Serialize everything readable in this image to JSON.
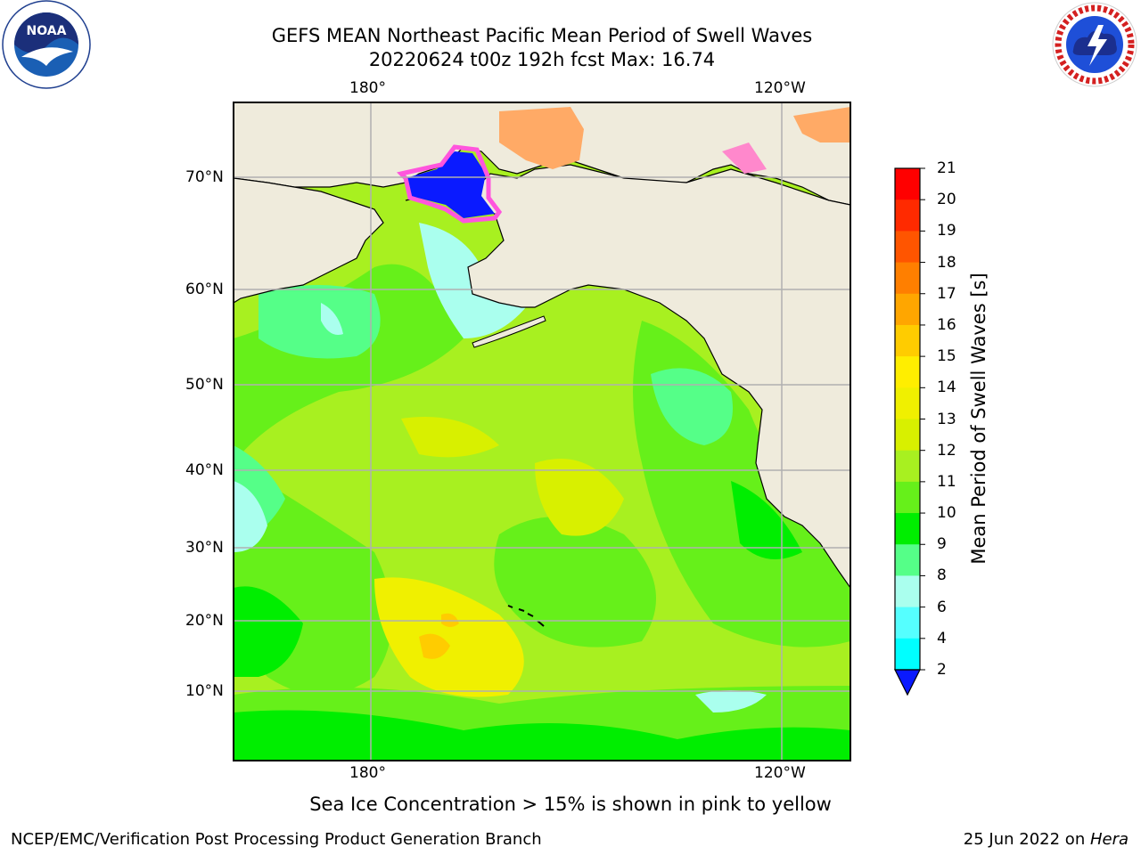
{
  "title": {
    "line1": "GEFS MEAN Northeast Pacific Mean Period of Swell Waves",
    "line2": "20220624 t00z 192h fcst   Max: 16.74"
  },
  "map": {
    "projection": "PlateCarree",
    "lon_range": [
      160,
      250
    ],
    "lat_range": [
      1,
      77
    ],
    "lon_ticks_top": [
      "180°",
      "120°W"
    ],
    "lon_ticks_bottom": [
      "180°",
      "120°W"
    ],
    "lat_ticks": [
      "70°N",
      "60°N",
      "50°N",
      "40°N",
      "30°N",
      "20°N",
      "10°N"
    ],
    "gridlines": true,
    "land_color": "#efebdc",
    "ocean_dominant_color": "#a8f020"
  },
  "colorbar": {
    "label": "Mean Period of Swell Waves [s]",
    "ticks": [
      "21",
      "20",
      "19",
      "18",
      "17",
      "16",
      "15",
      "14",
      "13",
      "12",
      "11",
      "10",
      "9",
      "8",
      "6",
      "4",
      "2"
    ],
    "colors": [
      "#ff0000",
      "#ff2a00",
      "#ff5500",
      "#ff7f00",
      "#ffa600",
      "#ffcc00",
      "#ffee00",
      "#f0f000",
      "#d8f000",
      "#a8f020",
      "#66f01a",
      "#00ee00",
      "#55ff88",
      "#aaffee",
      "#55ffff",
      "#00ffff",
      "#00ccff"
    ],
    "extend_color": "#0a1aff",
    "extend": "min"
  },
  "caption": "Sea Ice Concentration > 15% is shown in pink to yellow",
  "footer": {
    "left": "NCEP/EMC/Verification Post Processing Product Generation Branch",
    "right_date": "25 Jun 2022 on ",
    "right_host": "Hera"
  },
  "logos": {
    "noaa_text": "NOAA",
    "nws_text": "NATIONAL WEATHER SERVICE"
  }
}
